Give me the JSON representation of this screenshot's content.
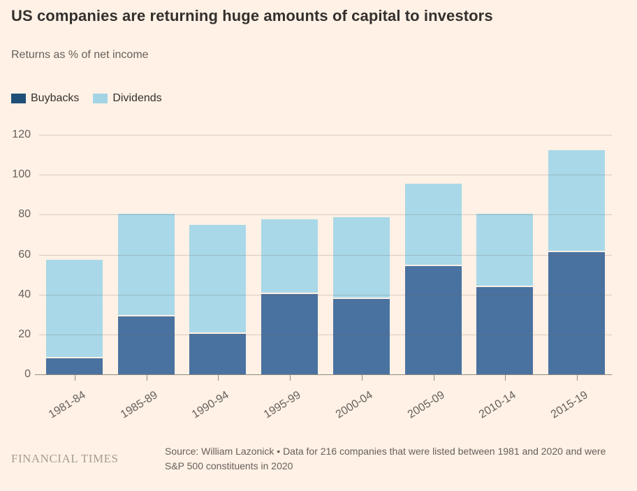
{
  "title": "US companies are returning huge amounts of capital to investors",
  "subtitle": "Returns as % of net income",
  "chart_data": {
    "type": "bar",
    "stacked": true,
    "title": "US companies are returning huge amounts of capital to investors",
    "ylabel": "Returns as % of net income",
    "xlabel": "",
    "categories": [
      "1981-84",
      "1985-89",
      "1990-94",
      "1995-99",
      "2000-04",
      "2005-09",
      "2010-14",
      "2015-19"
    ],
    "series": [
      {
        "name": "Buybacks",
        "color": "#4a72a0",
        "legend_color": "#1f4e79",
        "values": [
          8.5,
          29.5,
          20.5,
          40.5,
          38,
          54.5,
          44,
          61.5
        ]
      },
      {
        "name": "Dividends",
        "color": "#a9d8e8",
        "legend_color": "#a3d4e5",
        "values": [
          48.5,
          50.5,
          54,
          37,
          40.5,
          40.5,
          36,
          50.5
        ]
      }
    ],
    "totals": [
      57,
      80,
      74.5,
      77.5,
      78.5,
      95,
      80,
      112
    ],
    "yticks": [
      0,
      20,
      40,
      60,
      80,
      100,
      120
    ],
    "ylim": [
      0,
      120
    ],
    "grid": true,
    "legend_position": "top-left"
  },
  "footer": {
    "brand": "FINANCIAL TIMES",
    "source": "Source: William Lazonick • Data for 216 companies that were listed between 1981 and 2020 and were S&P 500 constituents in 2020"
  },
  "colors": {
    "background": "#fff1e5",
    "title_text": "#33302e",
    "muted_text": "#66605c",
    "gridline": "rgba(102,96,92,0.26)",
    "axis": "#8f8880",
    "brand_text": "#a59d94"
  }
}
